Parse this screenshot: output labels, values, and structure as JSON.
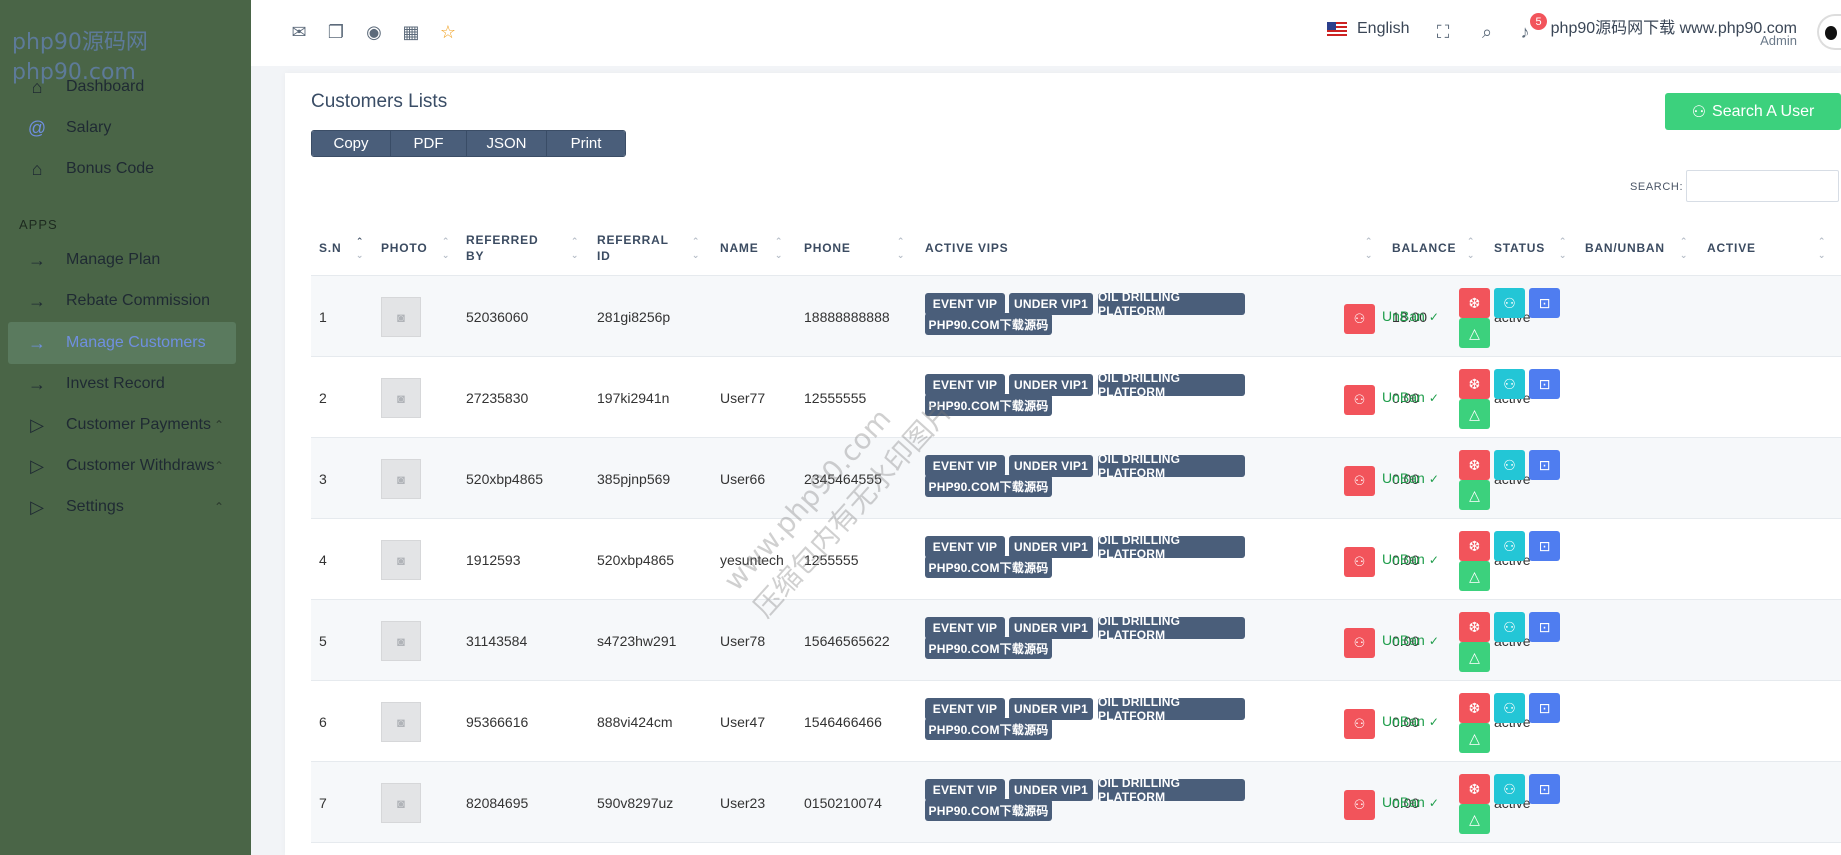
{
  "sidebar": {
    "watermark": "php90源码网\nphp90.com",
    "items": [
      {
        "label": "Dashboard",
        "icon": "home-icon"
      },
      {
        "label": "Salary",
        "icon": "at-icon"
      },
      {
        "label": "Bonus Code",
        "icon": "home-icon"
      },
      {
        "label": "Manage Plan",
        "icon": "arrow-right-icon"
      },
      {
        "label": "Rebate Commission",
        "icon": "arrow-right-icon"
      },
      {
        "label": "Manage Customers",
        "icon": "arrow-right-icon"
      },
      {
        "label": "Invest Record",
        "icon": "arrow-right-icon"
      },
      {
        "label": "Customer Payments",
        "icon": "play-icon"
      },
      {
        "label": "Customer Withdraws",
        "icon": "play-icon"
      },
      {
        "label": "Settings",
        "icon": "play-icon"
      }
    ],
    "section_apps": "APPS",
    "active_item": "Manage Customers"
  },
  "topbar": {
    "language": "English",
    "notification_count": "5",
    "user_name": "php90源码网下载 www.php90.com",
    "user_role": "Admin",
    "icons": [
      "mail-icon",
      "chat-icon",
      "check-circle-icon",
      "calendar-icon",
      "star-icon",
      "fullscreen-icon",
      "search-icon",
      "bell-icon"
    ]
  },
  "main": {
    "title": "Customers Lists",
    "export_buttons": [
      "Copy",
      "PDF",
      "JSON",
      "Print"
    ],
    "search_user_label": "Search A User",
    "search_label": "SEARCH:",
    "search_value": "",
    "columns": [
      "S.N",
      "PHOTO",
      "REFERRED BY",
      "REFERRAL ID",
      "NAME",
      "PHONE",
      "ACTIVE VIPS",
      "BALANCE",
      "STATUS",
      "BAN/UNBAN",
      "ACTIVE"
    ],
    "vip_labels": [
      "EVENT VIP",
      "UNDER VIP1",
      "OIL DRILLING PLATFORM",
      "PHP90.COM下载源码"
    ],
    "unban_label": "UnBan",
    "rows": [
      {
        "sn": "1",
        "referred_by": "52036060",
        "referral_id": "281gi8256p",
        "name": "",
        "phone": "18888888888",
        "balance": "18.00",
        "status": "active"
      },
      {
        "sn": "2",
        "referred_by": "27235830",
        "referral_id": "197ki2941n",
        "name": "User77",
        "phone": "12555555",
        "balance": "0.00",
        "status": "active"
      },
      {
        "sn": "3",
        "referred_by": "520xbp4865",
        "referral_id": "385pjnp569",
        "name": "User66",
        "phone": "2345464555",
        "balance": "0.00",
        "status": "active"
      },
      {
        "sn": "4",
        "referred_by": "1912593",
        "referral_id": "520xbp4865",
        "name": "yesuntech",
        "phone": "1255555",
        "balance": "0.00",
        "status": "active"
      },
      {
        "sn": "5",
        "referred_by": "31143584",
        "referral_id": "s4723hw291",
        "name": "User78",
        "phone": "15646565622",
        "balance": "0.00",
        "status": "active"
      },
      {
        "sn": "6",
        "referred_by": "95366616",
        "referral_id": "888vi424cm",
        "name": "User47",
        "phone": "1546466466",
        "balance": "0.00",
        "status": "active"
      },
      {
        "sn": "7",
        "referred_by": "82084695",
        "referral_id": "590v8297uz",
        "name": "User23",
        "phone": "0150210074",
        "balance": "0.00",
        "status": "active"
      }
    ],
    "watermark": "www.php90.com\n压缩包内有无水印图片"
  },
  "colors": {
    "sidebar_bg": "#4a6547",
    "active_link": "#6f8fe0",
    "button_dark": "#4a5e7a",
    "success": "#3cd17d",
    "danger": "#f2545b",
    "info": "#23c6d6",
    "primary": "#4f7df0"
  }
}
